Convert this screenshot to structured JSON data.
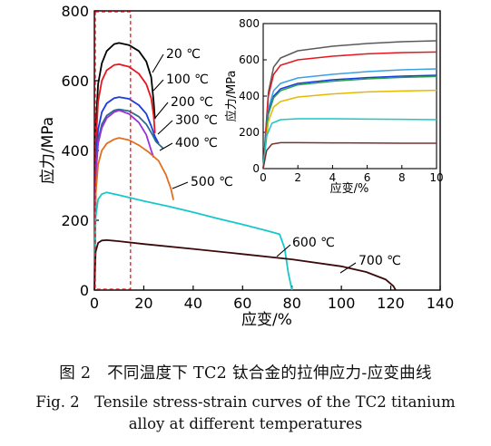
{
  "caption": {
    "zh": "图 2　不同温度下 TC2 钛合金的拉伸应力-应变曲线",
    "en_line1": "Fig. 2　Tensile stress-strain curves of the TC2 titanium",
    "en_line2": "alloy at different temperatures"
  },
  "chart_data": [
    {
      "type": "line",
      "title": "",
      "xlabel": "应变/%",
      "ylabel": "应力/MPa",
      "xlim": [
        0,
        140
      ],
      "ylim": [
        0,
        800
      ],
      "xticks": [
        "0",
        "20",
        "40",
        "60",
        "80",
        "100",
        "120",
        "140"
      ],
      "yticks": [
        "0",
        "200",
        "400",
        "600",
        "800"
      ],
      "grid": false,
      "highlight_region": {
        "x": [
          0,
          15
        ],
        "y": [
          0,
          800
        ],
        "style": "red dashed box"
      },
      "series": [
        {
          "name": "20 ℃",
          "color": "#000000",
          "points": [
            [
              0,
              0
            ],
            [
              0.6,
              470
            ],
            [
              1.5,
              590
            ],
            [
              3,
              650
            ],
            [
              5,
              685
            ],
            [
              8,
              705
            ],
            [
              10,
              708
            ],
            [
              14,
              702
            ],
            [
              18,
              685
            ],
            [
              21,
              655
            ],
            [
              23,
              610
            ],
            [
              24,
              540
            ],
            [
              24.5,
              490
            ]
          ]
        },
        {
          "name": "100 ℃",
          "color": "#e8161e",
          "points": [
            [
              0,
              0
            ],
            [
              0.6,
              420
            ],
            [
              1.5,
              540
            ],
            [
              3,
              600
            ],
            [
              5,
              630
            ],
            [
              8,
              645
            ],
            [
              10,
              647
            ],
            [
              14,
              640
            ],
            [
              18,
              620
            ],
            [
              21,
              590
            ],
            [
              23,
              550
            ],
            [
              24,
              500
            ],
            [
              24.5,
              450
            ]
          ]
        },
        {
          "name": "200 ℃",
          "color": "#1a3be0",
          "points": [
            [
              0,
              0
            ],
            [
              0.6,
              370
            ],
            [
              1.5,
              460
            ],
            [
              3,
              510
            ],
            [
              5,
              535
            ],
            [
              8,
              550
            ],
            [
              10,
              553
            ],
            [
              14,
              548
            ],
            [
              18,
              530
            ],
            [
              21,
              505
            ],
            [
              23,
              470
            ],
            [
              24.5,
              440
            ],
            [
              26,
              420
            ]
          ]
        },
        {
          "name": "300 ℃",
          "color": "#2a6c8c",
          "points": [
            [
              0,
              0
            ],
            [
              0.6,
              340
            ],
            [
              1.5,
              430
            ],
            [
              3,
              475
            ],
            [
              5,
              500
            ],
            [
              8,
              515
            ],
            [
              10,
              518
            ],
            [
              14,
              513
            ],
            [
              18,
              497
            ],
            [
              21,
              475
            ],
            [
              23.5,
              445
            ],
            [
              25,
              425
            ],
            [
              28,
              405
            ]
          ]
        },
        {
          "name": "",
          "color": "#9b30d8",
          "points": [
            [
              0,
              0
            ],
            [
              0.6,
              330
            ],
            [
              1.5,
              420
            ],
            [
              3,
              465
            ],
            [
              5,
              493
            ],
            [
              8,
              510
            ],
            [
              10,
              515
            ],
            [
              14,
              505
            ],
            [
              18,
              480
            ],
            [
              21,
              445
            ],
            [
              23,
              400
            ],
            [
              24,
              380
            ]
          ]
        },
        {
          "name": "400 ℃",
          "color": "#e07020",
          "points": [
            [
              0,
              0
            ],
            [
              0.6,
              280
            ],
            [
              1.5,
              360
            ],
            [
              3,
              400
            ],
            [
              5,
              420
            ],
            [
              8,
              432
            ],
            [
              10,
              436
            ],
            [
              14,
              430
            ],
            [
              18,
              415
            ],
            [
              22,
              395
            ],
            [
              26,
              370
            ],
            [
              29,
              330
            ],
            [
              31,
              290
            ],
            [
              32,
              258
            ]
          ]
        },
        {
          "name": "500 ℃",
          "color": "#a05a10",
          "points": []
        },
        {
          "name": "600 ℃",
          "color": "#18c8c8",
          "points": [
            [
              0,
              0
            ],
            [
              0.5,
              210
            ],
            [
              1.5,
              260
            ],
            [
              3,
              275
            ],
            [
              5,
              280
            ],
            [
              10,
              272
            ],
            [
              20,
              255
            ],
            [
              30,
              240
            ],
            [
              40,
              223
            ],
            [
              50,
              205
            ],
            [
              60,
              188
            ],
            [
              70,
              170
            ],
            [
              75,
              160
            ],
            [
              77,
              120
            ],
            [
              78.5,
              50
            ],
            [
              80,
              0
            ]
          ]
        },
        {
          "name": "700 ℃",
          "color": "#3a0a0a",
          "points": [
            [
              0,
              0
            ],
            [
              0.5,
              110
            ],
            [
              1.5,
              135
            ],
            [
              3,
              142
            ],
            [
              5,
              143
            ],
            [
              10,
              140
            ],
            [
              20,
              132
            ],
            [
              40,
              118
            ],
            [
              60,
              103
            ],
            [
              80,
              88
            ],
            [
              100,
              68
            ],
            [
              110,
              52
            ],
            [
              118,
              30
            ],
            [
              121,
              12
            ],
            [
              122,
              0
            ]
          ]
        }
      ]
    },
    {
      "type": "line",
      "title": "",
      "xlabel": "应变/%",
      "ylabel": "应力/MPa",
      "xlim": [
        0,
        10
      ],
      "ylim": [
        0,
        800
      ],
      "xticks": [
        "0",
        "2",
        "4",
        "6",
        "8",
        "10"
      ],
      "yticks": [
        "0",
        "200",
        "400",
        "600",
        "800"
      ],
      "grid": false,
      "series": [
        {
          "color": "#5a5a5a",
          "points": [
            [
              0,
              0
            ],
            [
              0.3,
              420
            ],
            [
              0.6,
              560
            ],
            [
              1,
              610
            ],
            [
              2,
              650
            ],
            [
              4,
              675
            ],
            [
              6,
              690
            ],
            [
              8,
              700
            ],
            [
              10,
              705
            ]
          ]
        },
        {
          "color": "#e8161e",
          "points": [
            [
              0,
              0
            ],
            [
              0.3,
              400
            ],
            [
              0.6,
              520
            ],
            [
              1,
              570
            ],
            [
              2,
              600
            ],
            [
              4,
              620
            ],
            [
              6,
              633
            ],
            [
              8,
              640
            ],
            [
              10,
              643
            ]
          ]
        },
        {
          "color": "#3aa0e0",
          "points": [
            [
              0,
              0
            ],
            [
              0.3,
              330
            ],
            [
              0.6,
              430
            ],
            [
              1,
              470
            ],
            [
              2,
              500
            ],
            [
              4,
              520
            ],
            [
              6,
              535
            ],
            [
              8,
              545
            ],
            [
              10,
              550
            ]
          ]
        },
        {
          "color": "#1a3be0",
          "points": [
            [
              0,
              0
            ],
            [
              0.3,
              310
            ],
            [
              0.6,
              400
            ],
            [
              1,
              440
            ],
            [
              2,
              470
            ],
            [
              4,
              490
            ],
            [
              6,
              502
            ],
            [
              8,
              510
            ],
            [
              10,
              515
            ]
          ]
        },
        {
          "color": "#2aa050",
          "points": [
            [
              0,
              0
            ],
            [
              0.3,
              300
            ],
            [
              0.6,
              390
            ],
            [
              1,
              430
            ],
            [
              2,
              462
            ],
            [
              4,
              482
            ],
            [
              6,
              495
            ],
            [
              8,
              503
            ],
            [
              10,
              508
            ]
          ]
        },
        {
          "color": "#e8b800",
          "points": [
            [
              0,
              0
            ],
            [
              0.3,
              260
            ],
            [
              0.6,
              340
            ],
            [
              1,
              370
            ],
            [
              2,
              395
            ],
            [
              4,
              412
            ],
            [
              6,
              423
            ],
            [
              8,
              428
            ],
            [
              10,
              432
            ]
          ]
        },
        {
          "color": "#18c8c8",
          "points": [
            [
              0,
              0
            ],
            [
              0.2,
              180
            ],
            [
              0.5,
              250
            ],
            [
              1,
              270
            ],
            [
              2,
              275
            ],
            [
              4,
              275
            ],
            [
              6,
              273
            ],
            [
              8,
              272
            ],
            [
              10,
              270
            ]
          ]
        },
        {
          "color": "#7a3030",
          "points": [
            [
              0,
              0
            ],
            [
              0.2,
              100
            ],
            [
              0.5,
              135
            ],
            [
              1,
              143
            ],
            [
              2,
              143
            ],
            [
              4,
              142
            ],
            [
              6,
              141
            ],
            [
              8,
              140
            ],
            [
              10,
              140
            ]
          ]
        }
      ]
    }
  ]
}
